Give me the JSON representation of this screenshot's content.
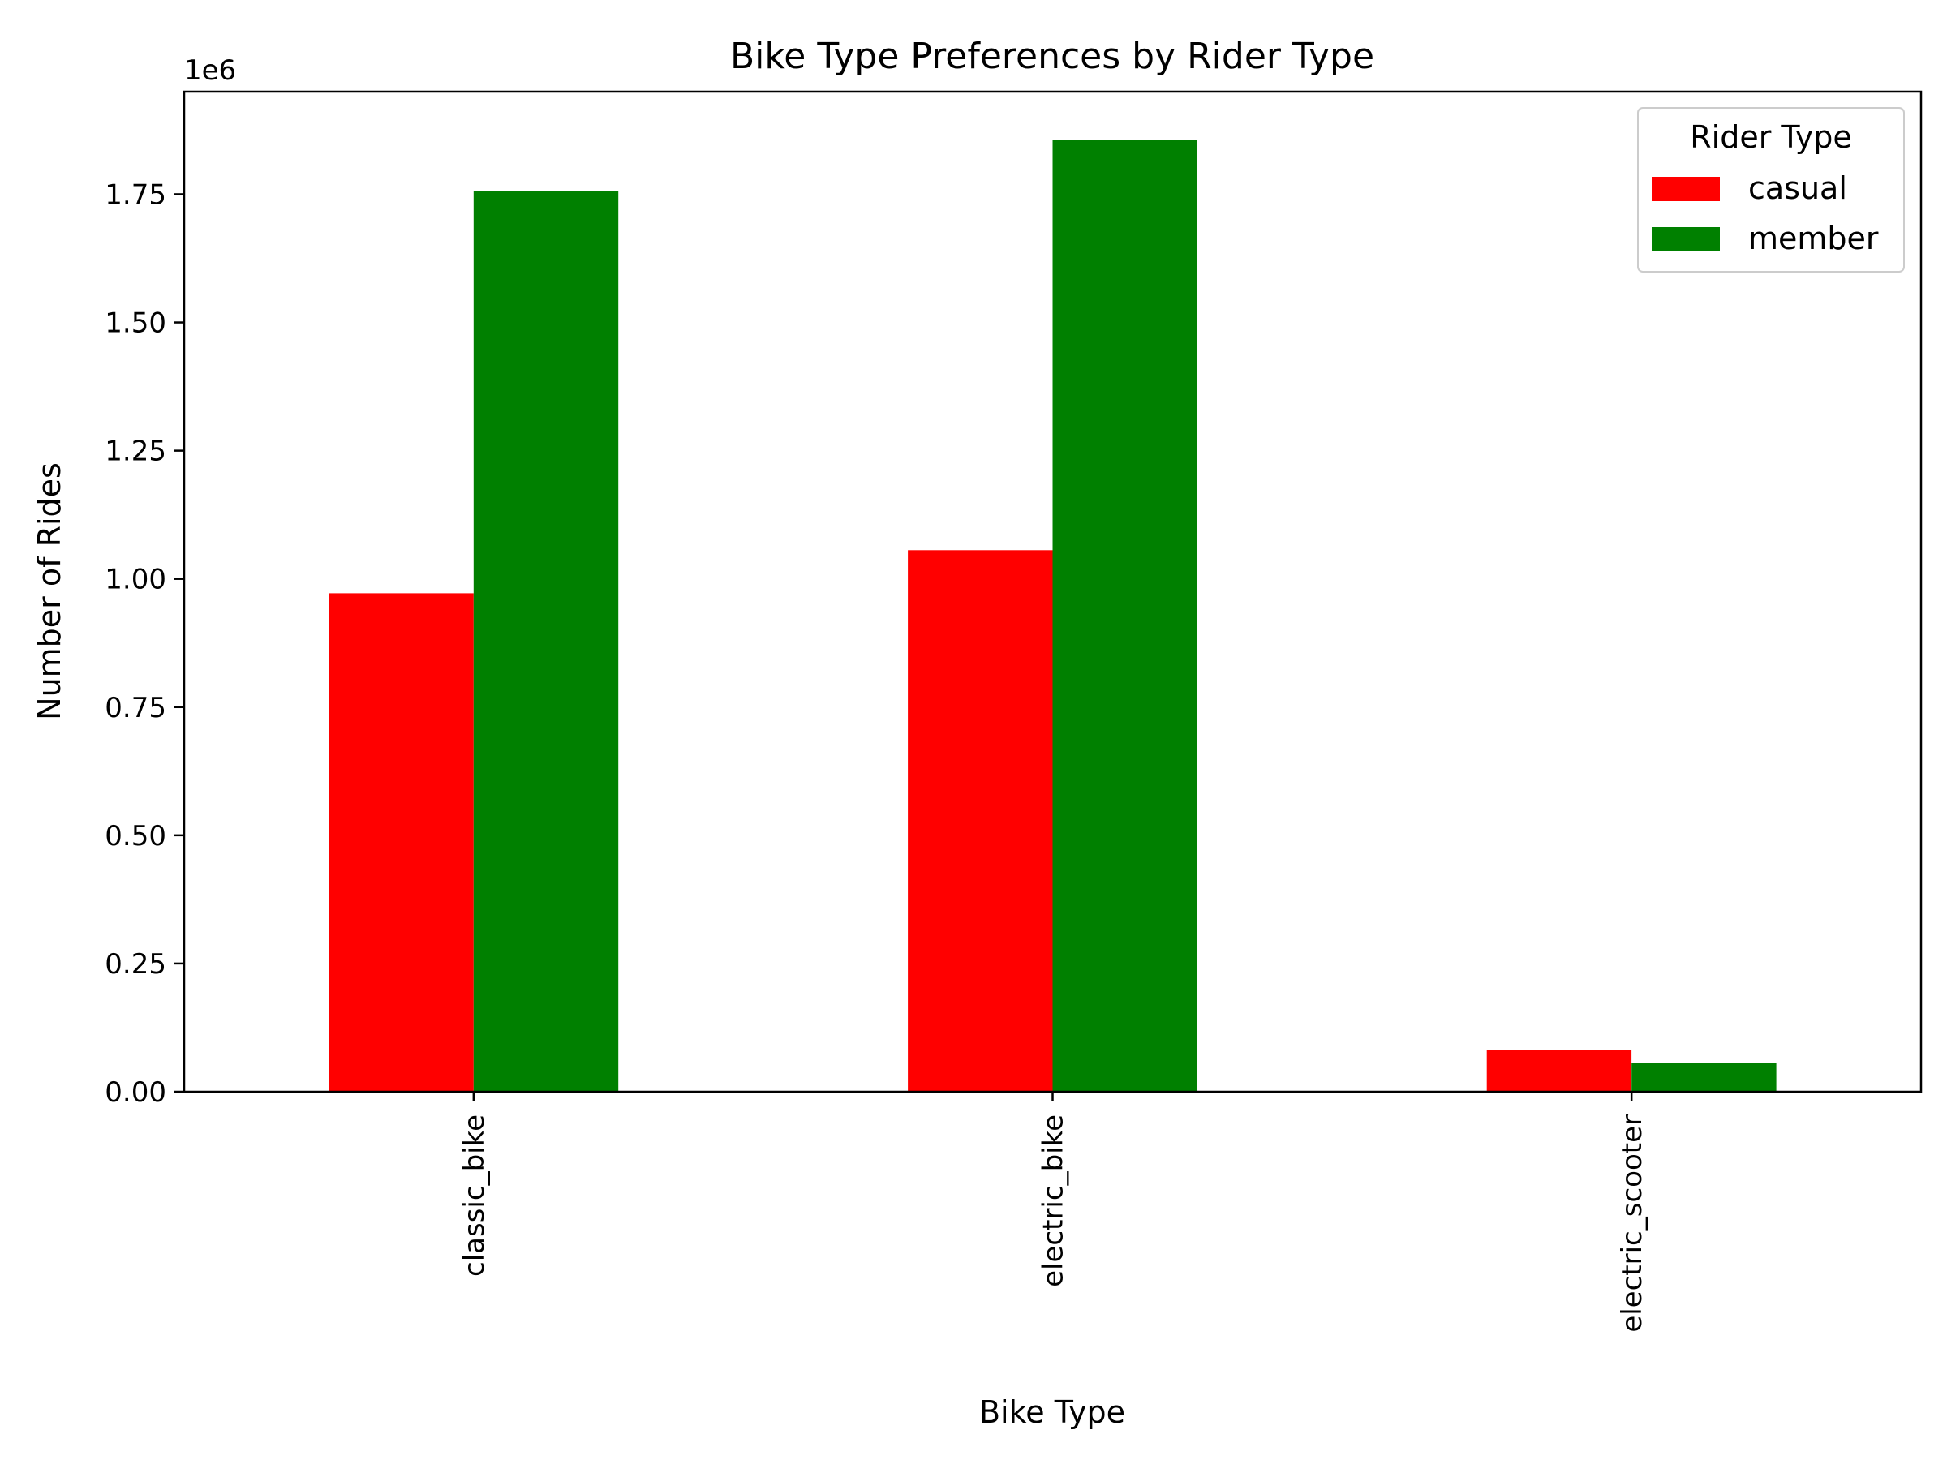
{
  "chart_data": {
    "type": "bar",
    "title": "Bike Type Preferences by Rider Type",
    "xlabel": "Bike Type",
    "ylabel": "Number of Rides",
    "y_scale_note": "1e6",
    "categories": [
      "classic_bike",
      "electric_bike",
      "electric_scooter"
    ],
    "series": [
      {
        "name": "casual",
        "color": "#ff0000",
        "values": [
          972000,
          1056000,
          82000
        ]
      },
      {
        "name": "member",
        "color": "#008000",
        "values": [
          1756000,
          1856000,
          56000
        ]
      }
    ],
    "ylim": [
      0,
      1950000
    ],
    "yticks": [
      0,
      250000,
      500000,
      750000,
      1000000,
      1250000,
      1500000,
      1750000
    ],
    "ytick_labels": [
      "0.00",
      "0.25",
      "0.50",
      "0.75",
      "1.00",
      "1.25",
      "1.50",
      "1.75"
    ],
    "legend": {
      "title": "Rider Type",
      "position": "top-right"
    },
    "grid": false
  }
}
